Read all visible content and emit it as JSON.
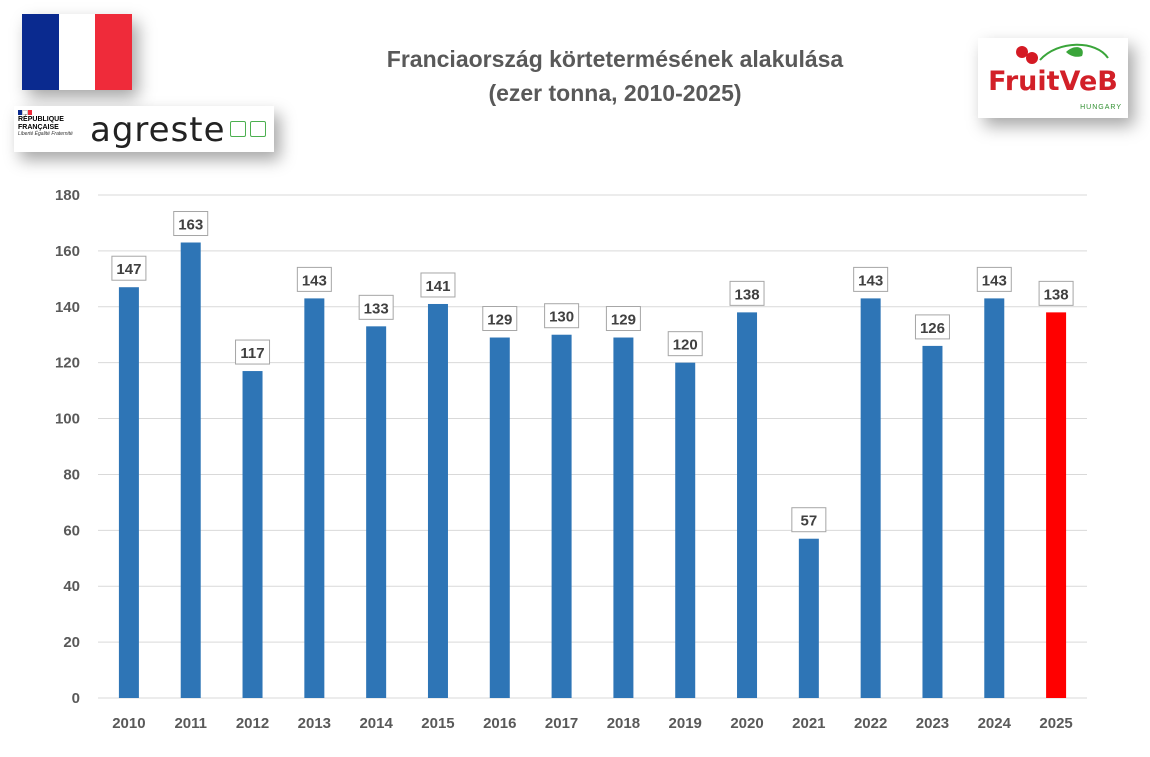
{
  "title_line1": "Franciaország körtetermésének alakulása",
  "title_line2": "(ezer tonna, 2010-2025)",
  "logos": {
    "republique": "RÉPUBLIQUE",
    "francaise": "FRANÇAISE",
    "motto": "Liberté Égalité Fraternité",
    "agreste": "agreste",
    "fruitveb": "FruitVeB",
    "fruitveb_sub": "HUNGARY"
  },
  "colors": {
    "bar": "#2e75b6",
    "highlight": "#ff0000",
    "grid": "#d9d9d9",
    "flag_blue": "#0a2a8f",
    "flag_white": "#ffffff",
    "flag_red": "#ef2b3a"
  },
  "chart_data": {
    "type": "bar",
    "title": "Franciaország körtetermésének alakulása (ezer tonna, 2010-2025)",
    "categories": [
      "2010",
      "2011",
      "2012",
      "2013",
      "2014",
      "2015",
      "2016",
      "2017",
      "2018",
      "2019",
      "2020",
      "2021",
      "2022",
      "2023",
      "2024",
      "2025"
    ],
    "values": [
      147,
      163,
      117,
      143,
      133,
      141,
      129,
      130,
      129,
      120,
      138,
      57,
      143,
      126,
      143,
      138
    ],
    "highlight_category": "2025",
    "ylim": [
      0,
      180
    ],
    "yticks": [
      0,
      20,
      40,
      60,
      80,
      100,
      120,
      140,
      160,
      180
    ],
    "grid": true,
    "legend": "none",
    "data_labels": true
  }
}
